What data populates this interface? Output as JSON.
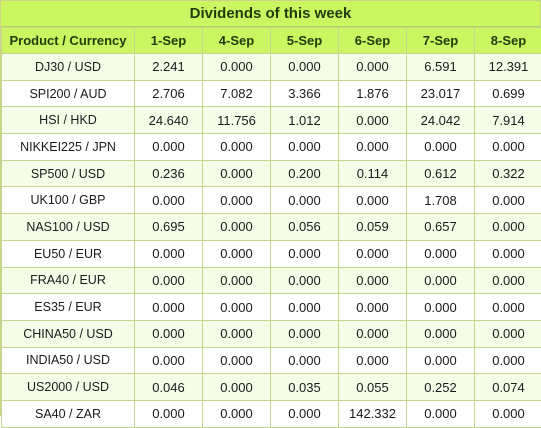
{
  "title": "Dividends of this week",
  "table": {
    "headers": [
      "Product / Currency",
      "1-Sep",
      "4-Sep",
      "5-Sep",
      "6-Sep",
      "7-Sep",
      "8-Sep"
    ],
    "rows": [
      [
        "DJ30 / USD",
        "2.241",
        "0.000",
        "0.000",
        "0.000",
        "6.591",
        "12.391"
      ],
      [
        "SPI200 / AUD",
        "2.706",
        "7.082",
        "3.366",
        "1.876",
        "23.017",
        "0.699"
      ],
      [
        "HSI / HKD",
        "24.640",
        "11.756",
        "1.012",
        "0.000",
        "24.042",
        "7.914"
      ],
      [
        "NIKKEI225 / JPN",
        "0.000",
        "0.000",
        "0.000",
        "0.000",
        "0.000",
        "0.000"
      ],
      [
        "SP500 / USD",
        "0.236",
        "0.000",
        "0.200",
        "0.114",
        "0.612",
        "0.322"
      ],
      [
        "UK100 / GBP",
        "0.000",
        "0.000",
        "0.000",
        "0.000",
        "1.708",
        "0.000"
      ],
      [
        "NAS100 / USD",
        "0.695",
        "0.000",
        "0.056",
        "0.059",
        "0.657",
        "0.000"
      ],
      [
        "EU50 / EUR",
        "0.000",
        "0.000",
        "0.000",
        "0.000",
        "0.000",
        "0.000"
      ],
      [
        "FRA40 / EUR",
        "0.000",
        "0.000",
        "0.000",
        "0.000",
        "0.000",
        "0.000"
      ],
      [
        "ES35 / EUR",
        "0.000",
        "0.000",
        "0.000",
        "0.000",
        "0.000",
        "0.000"
      ],
      [
        "CHINA50 / USD",
        "0.000",
        "0.000",
        "0.000",
        "0.000",
        "0.000",
        "0.000"
      ],
      [
        "INDIA50 / USD",
        "0.000",
        "0.000",
        "0.000",
        "0.000",
        "0.000",
        "0.000"
      ],
      [
        "US2000 / USD",
        "0.046",
        "0.000",
        "0.035",
        "0.055",
        "0.252",
        "0.074"
      ],
      [
        "SA40 / ZAR",
        "0.000",
        "0.000",
        "0.000",
        "142.332",
        "0.000",
        "0.000"
      ]
    ]
  },
  "colors": {
    "header_bg": "#ccf562",
    "row_alt_bg": "#f6fde7",
    "border": "#c6d68f"
  }
}
